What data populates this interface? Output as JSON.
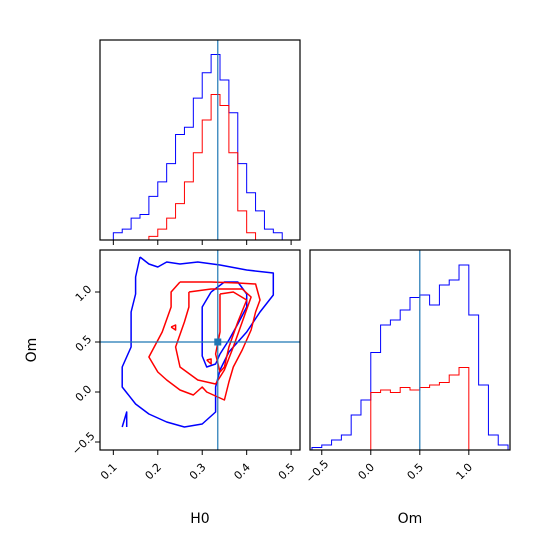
{
  "colors": {
    "series_a": "#0000ff",
    "series_b": "#ff0000",
    "truth": "#1f77b4",
    "axes": "#000000"
  },
  "chart_data": [
    {
      "type": "histogram",
      "panel": "H0 marginal",
      "xlim": [
        0.07,
        0.52
      ],
      "xticks": [
        0.1,
        0.2,
        0.3,
        0.4,
        0.5
      ],
      "truth_x": 0.335,
      "bin_edges": [
        0.1,
        0.12,
        0.14,
        0.16,
        0.18,
        0.2,
        0.22,
        0.24,
        0.26,
        0.28,
        0.3,
        0.32,
        0.34,
        0.36,
        0.38,
        0.4,
        0.42,
        0.44,
        0.46,
        0.48,
        0.5
      ],
      "series": [
        {
          "color": "blue",
          "counts": [
            2,
            3,
            6,
            7,
            12,
            16,
            21,
            29,
            31,
            39,
            46,
            51,
            44,
            35,
            21,
            13,
            8,
            3,
            2,
            0
          ]
        },
        {
          "color": "red",
          "counts": [
            0,
            0,
            0,
            0,
            1,
            3,
            6,
            10,
            16,
            24,
            33,
            40,
            37,
            24,
            8,
            2,
            0,
            0,
            0,
            0
          ]
        }
      ]
    },
    {
      "type": "contour",
      "panel": "H0 vs Om joint",
      "xlabel": "H0",
      "ylabel": "Om",
      "xlim": [
        0.07,
        0.52
      ],
      "ylim": [
        -0.58,
        1.42
      ],
      "xticks": [
        0.1,
        0.2,
        0.3,
        0.4,
        0.5
      ],
      "yticks": [
        -0.5,
        0.0,
        0.5,
        1.0
      ],
      "xtick_labels": [
        "0.1",
        "0.2",
        "0.3",
        "0.4",
        "0.5"
      ],
      "ytick_labels": [
        "−0.5",
        "0.0",
        "0.5",
        "1.0"
      ],
      "truth": [
        0.335,
        0.5
      ],
      "contours": [
        {
          "color": "blue",
          "points": [
            [
              0.16,
              1.35
            ],
            [
              0.18,
              1.28
            ],
            [
              0.2,
              1.25
            ],
            [
              0.22,
              1.3
            ],
            [
              0.25,
              1.28
            ],
            [
              0.29,
              1.3
            ],
            [
              0.34,
              1.27
            ],
            [
              0.4,
              1.22
            ],
            [
              0.46,
              1.19
            ],
            [
              0.46,
              0.97
            ],
            [
              0.43,
              0.8
            ],
            [
              0.4,
              0.6
            ],
            [
              0.36,
              0.4
            ],
            [
              0.34,
              0.22
            ],
            [
              0.33,
              0.05
            ],
            [
              0.33,
              -0.2
            ],
            [
              0.3,
              -0.32
            ],
            [
              0.26,
              -0.35
            ],
            [
              0.22,
              -0.3
            ],
            [
              0.18,
              -0.22
            ],
            [
              0.15,
              -0.12
            ],
            [
              0.12,
              0.05
            ],
            [
              0.12,
              0.25
            ],
            [
              0.14,
              0.45
            ],
            [
              0.14,
              0.6
            ],
            [
              0.14,
              0.8
            ],
            [
              0.15,
              0.98
            ],
            [
              0.15,
              1.15
            ],
            [
              0.16,
              1.35
            ]
          ]
        },
        {
          "color": "blue",
          "points": [
            [
              0.32,
              1.0
            ],
            [
              0.35,
              1.1
            ],
            [
              0.38,
              1.1
            ],
            [
              0.4,
              0.98
            ],
            [
              0.4,
              0.85
            ],
            [
              0.38,
              0.68
            ],
            [
              0.36,
              0.52
            ],
            [
              0.34,
              0.38
            ],
            [
              0.33,
              0.28
            ],
            [
              0.31,
              0.25
            ],
            [
              0.3,
              0.36
            ],
            [
              0.3,
              0.6
            ],
            [
              0.3,
              0.85
            ],
            [
              0.32,
              1.0
            ]
          ]
        },
        {
          "color": "red",
          "points": [
            [
              0.25,
              1.1
            ],
            [
              0.32,
              1.1
            ],
            [
              0.38,
              1.09
            ],
            [
              0.42,
              1.08
            ],
            [
              0.43,
              0.92
            ],
            [
              0.42,
              0.8
            ],
            [
              0.41,
              0.62
            ],
            [
              0.39,
              0.42
            ],
            [
              0.37,
              0.25
            ],
            [
              0.36,
              0.1
            ],
            [
              0.35,
              -0.08
            ],
            [
              0.31,
              0.0
            ],
            [
              0.3,
              0.05
            ],
            [
              0.28,
              -0.03
            ],
            [
              0.25,
              0.02
            ],
            [
              0.22,
              0.12
            ],
            [
              0.2,
              0.2
            ],
            [
              0.18,
              0.35
            ],
            [
              0.21,
              0.6
            ],
            [
              0.23,
              0.85
            ],
            [
              0.23,
              1.0
            ],
            [
              0.25,
              1.1
            ]
          ]
        },
        {
          "color": "red",
          "points": [
            [
              0.27,
              1.0
            ],
            [
              0.32,
              1.03
            ],
            [
              0.39,
              1.03
            ],
            [
              0.41,
              0.95
            ],
            [
              0.39,
              0.7
            ],
            [
              0.37,
              0.45
            ],
            [
              0.35,
              0.22
            ],
            [
              0.33,
              0.08
            ],
            [
              0.29,
              0.12
            ],
            [
              0.25,
              0.25
            ],
            [
              0.24,
              0.45
            ],
            [
              0.26,
              0.7
            ],
            [
              0.27,
              0.85
            ],
            [
              0.27,
              1.0
            ]
          ]
        },
        {
          "color": "red",
          "points": [
            [
              0.34,
              0.98
            ],
            [
              0.37,
              1.0
            ],
            [
              0.4,
              0.92
            ],
            [
              0.38,
              0.7
            ],
            [
              0.36,
              0.45
            ],
            [
              0.35,
              0.25
            ],
            [
              0.34,
              0.2
            ],
            [
              0.33,
              0.38
            ],
            [
              0.34,
              0.6
            ],
            [
              0.34,
              0.8
            ],
            [
              0.34,
              0.98
            ]
          ]
        },
        {
          "color": "red",
          "points": [
            [
              0.23,
              0.65
            ],
            [
              0.24,
              0.67
            ],
            [
              0.24,
              0.62
            ],
            [
              0.23,
              0.65
            ]
          ]
        },
        {
          "color": "red",
          "points": [
            [
              0.31,
              0.32
            ],
            [
              0.32,
              0.33
            ],
            [
              0.32,
              0.28
            ],
            [
              0.31,
              0.32
            ]
          ]
        },
        {
          "color": "blue",
          "points": [
            [
              0.12,
              -0.35
            ],
            [
              0.13,
              -0.2
            ],
            [
              0.13,
              -0.35
            ]
          ]
        }
      ]
    },
    {
      "type": "histogram",
      "panel": "Om marginal",
      "xlabel": "Om",
      "xlim": [
        -0.62,
        1.42
      ],
      "xticks": [
        -0.5,
        0.0,
        0.5,
        1.0
      ],
      "xtick_labels": [
        "−0.5",
        "0.0",
        "0.5",
        "1.0"
      ],
      "truth_x": 0.5,
      "bin_edges": [
        -0.6,
        -0.5,
        -0.4,
        -0.3,
        -0.2,
        -0.1,
        0.0,
        0.1,
        0.2,
        0.3,
        0.4,
        0.5,
        0.6,
        0.7,
        0.8,
        0.9,
        1.0,
        1.1,
        1.2,
        1.3,
        1.4
      ],
      "series": [
        {
          "color": "blue",
          "counts": [
            1,
            2,
            4,
            6,
            14,
            20,
            39,
            50,
            52,
            56,
            61,
            62,
            58,
            66,
            68,
            74,
            54,
            26,
            6,
            2
          ]
        },
        {
          "color": "red",
          "counts": [
            0,
            0,
            0,
            0,
            0,
            0,
            23,
            24,
            23,
            25,
            24,
            25,
            26,
            27,
            30,
            33,
            0,
            0,
            0,
            0
          ]
        }
      ]
    }
  ]
}
